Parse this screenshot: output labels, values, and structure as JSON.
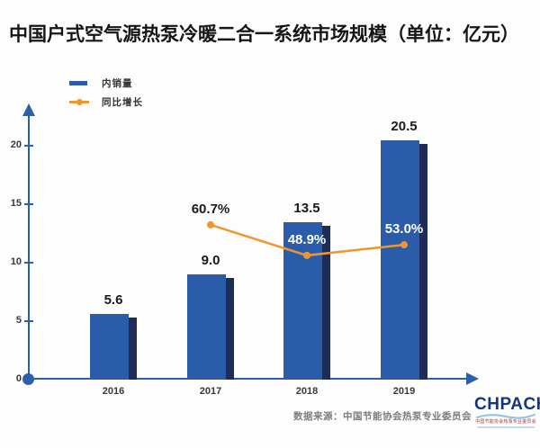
{
  "title": "中国户式空气源热泵冷暖二合一系统市场规模（单位：亿元）",
  "legend": {
    "bar_label": "内销量",
    "line_label": "同比增长"
  },
  "chart_data": {
    "type": "bar",
    "title": "中国户式空气源热泵冷暖二合一系统市场规模（单位：亿元）",
    "categories": [
      "2016",
      "2017",
      "2018",
      "2019"
    ],
    "series": [
      {
        "name": "内销量",
        "type": "bar",
        "unit": "亿元",
        "values": [
          5.6,
          9.0,
          13.5,
          20.5
        ]
      },
      {
        "name": "同比增长",
        "type": "line",
        "unit": "%",
        "values": [
          null,
          60.7,
          48.9,
          53.0
        ]
      }
    ],
    "value_labels": [
      "5.6",
      "9.0",
      "13.5",
      "20.5"
    ],
    "growth_labels": [
      "60.7%",
      "48.9%",
      "53.0%"
    ],
    "growth_label_styles": [
      "dark",
      "light",
      "light"
    ],
    "y_ticks": [
      0,
      5,
      10,
      15,
      20
    ],
    "ylim": [
      0,
      22.5
    ],
    "xlabel": "",
    "ylabel": "",
    "grid": false,
    "legend_position": "top-left"
  },
  "colors": {
    "bar": "#2a5caa",
    "bar_shadow": "#1f2c58",
    "line": "#f0962d",
    "axis": "#2e5fa9",
    "label_dark": "#1a1a1a",
    "label_light": "#ffffff"
  },
  "source": "数据来源：中国节能协会热泵专业委员会",
  "logo": {
    "name": "CHPA",
    "caption": "中国节能协会热泵专业委员会"
  }
}
